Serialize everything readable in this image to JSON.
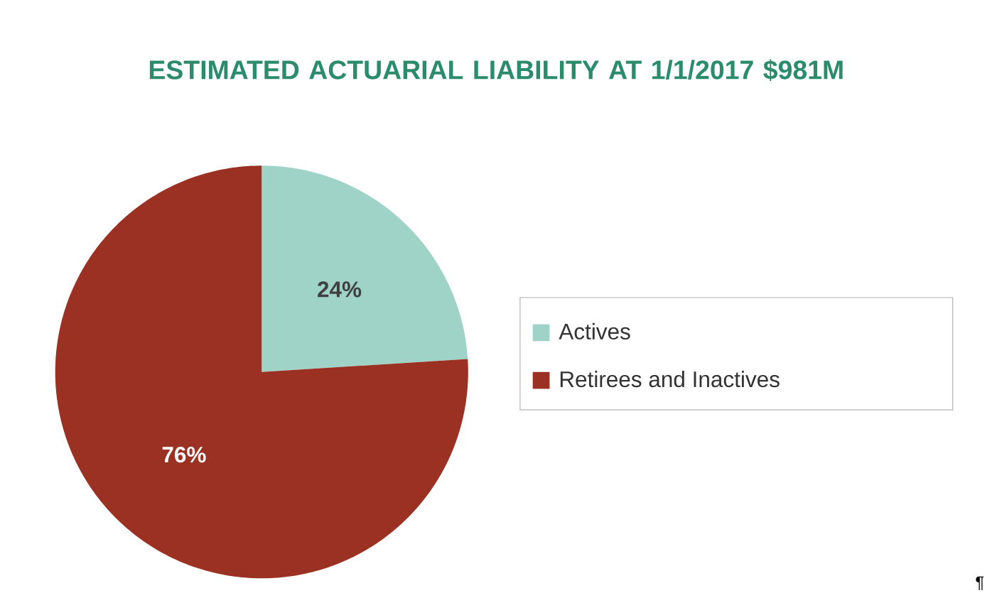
{
  "chart_data": {
    "type": "pie",
    "title": "ESTIMATED ACTUARIAL LIABILITY AT 1/1/2017 $981M",
    "categories": [
      "Actives",
      "Retirees and Inactives"
    ],
    "values": [
      24,
      76
    ],
    "colors": [
      "#9fd3c7",
      "#9b3123"
    ],
    "value_labels": [
      "24%",
      "76%"
    ],
    "legend": "right",
    "annotations": [
      "¶"
    ]
  }
}
